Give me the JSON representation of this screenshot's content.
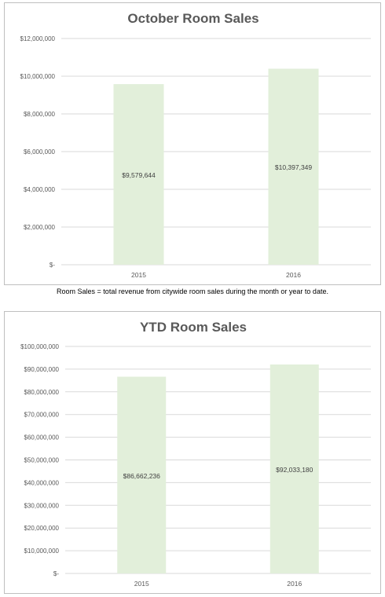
{
  "colors": {
    "bar": "#e2efda",
    "grid": "#d9d9d9",
    "text": "#595959"
  },
  "note": "Room Sales = total revenue from citywide room sales during the month or year to date.",
  "chart_data": [
    {
      "type": "bar",
      "title": "October Room Sales",
      "categories": [
        "2015",
        "2016"
      ],
      "values": [
        9579644,
        10397349
      ],
      "value_labels": [
        "$9,579,644",
        "$10,397,349"
      ],
      "ylim": [
        0,
        12000000
      ],
      "yticks": [
        0,
        2000000,
        4000000,
        6000000,
        8000000,
        10000000,
        12000000
      ],
      "ytick_labels": [
        "$-",
        "$2,000,000",
        "$4,000,000",
        "$6,000,000",
        "$8,000,000",
        "$10,000,000",
        "$12,000,000"
      ],
      "grid": true,
      "legend": "none"
    },
    {
      "type": "bar",
      "title": "YTD Room Sales",
      "categories": [
        "2015",
        "2016"
      ],
      "values": [
        86662236,
        92033180
      ],
      "value_labels": [
        "$86,662,236",
        "$92,033,180"
      ],
      "ylim": [
        0,
        100000000
      ],
      "yticks": [
        0,
        10000000,
        20000000,
        30000000,
        40000000,
        50000000,
        60000000,
        70000000,
        80000000,
        90000000,
        100000000
      ],
      "ytick_labels": [
        "$-",
        "$10,000,000",
        "$20,000,000",
        "$30,000,000",
        "$40,000,000",
        "$50,000,000",
        "$60,000,000",
        "$70,000,000",
        "$80,000,000",
        "$90,000,000",
        "$100,000,000"
      ],
      "grid": true,
      "legend": "none"
    }
  ]
}
